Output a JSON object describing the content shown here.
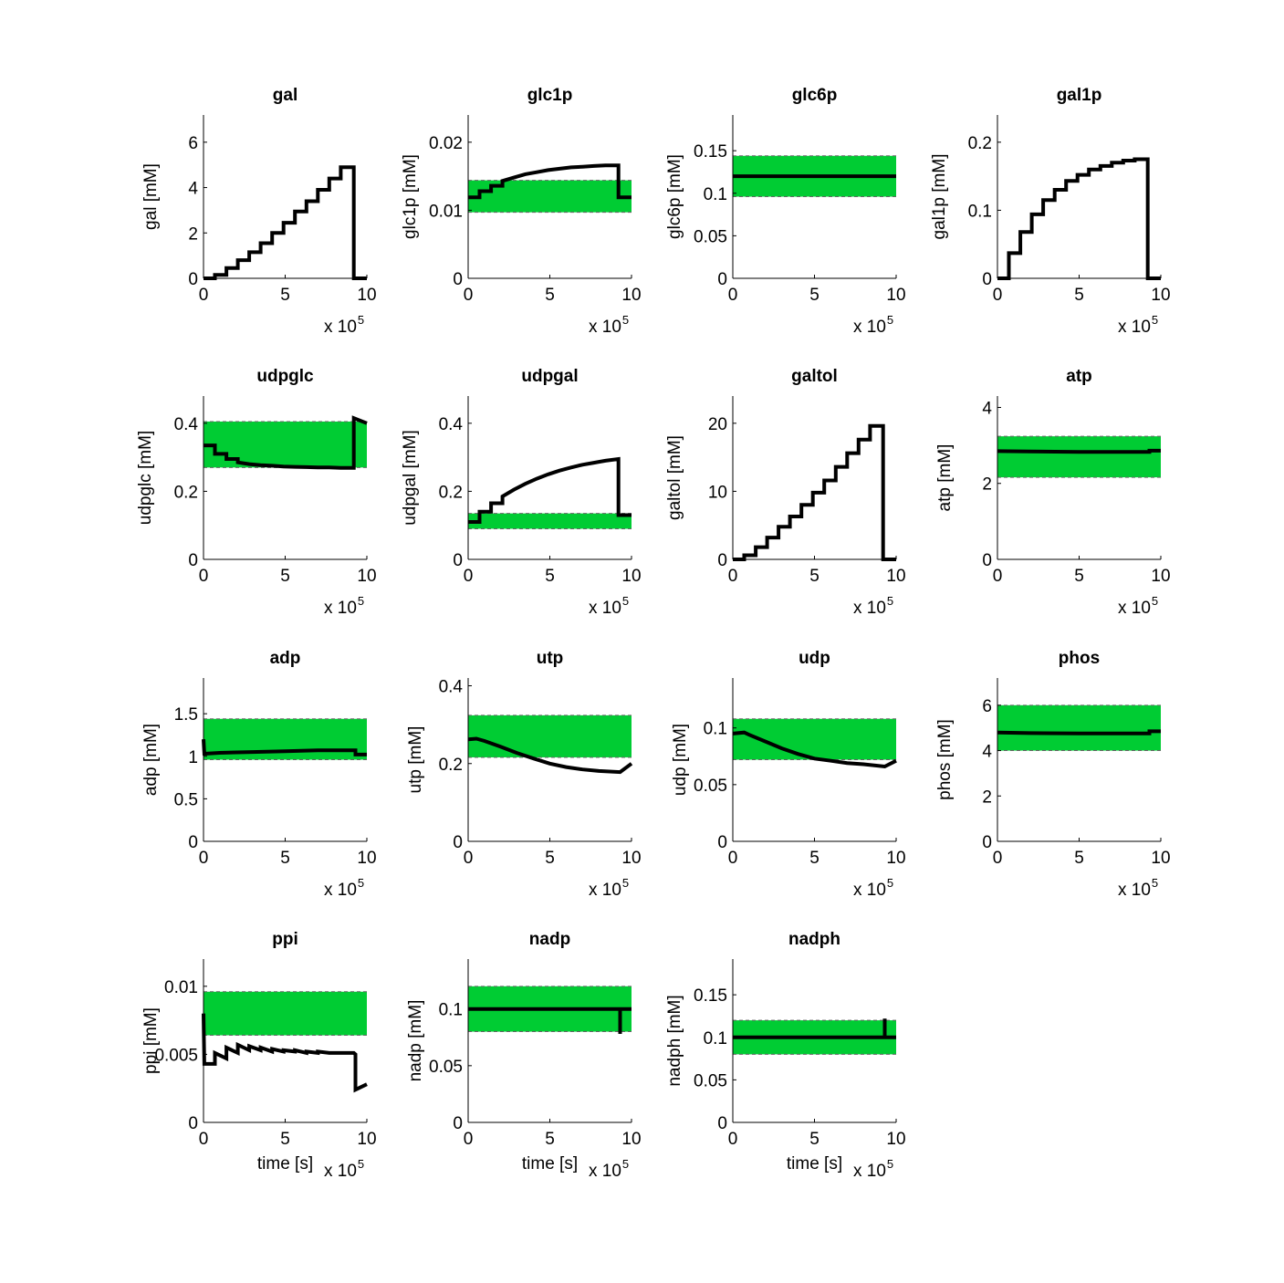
{
  "figure": {
    "background": "#ffffff",
    "band_color": "#00cc33",
    "line_color": "#000000"
  },
  "chart_data": [
    {
      "type": "line",
      "title": "gal",
      "ylabel": "gal [mM]",
      "xlabel": "",
      "xlim": [
        0,
        10
      ],
      "ylim": [
        0,
        7.2
      ],
      "xticks": [
        "0",
        "5",
        "10"
      ],
      "yticks": [
        {
          "v": 0,
          "l": "0"
        },
        {
          "v": 2,
          "l": "2"
        },
        {
          "v": 4,
          "l": "4"
        },
        {
          "v": 6,
          "l": "6"
        }
      ],
      "x_multiplier": "x 10",
      "x_exponent": "5",
      "band": null,
      "series": [
        {
          "x": [
            0,
            0.7,
            0.7,
            1.4,
            1.4,
            2.1,
            2.1,
            2.8,
            2.8,
            3.5,
            3.5,
            4.2,
            4.2,
            4.9,
            4.9,
            5.6,
            5.6,
            6.3,
            6.3,
            7.0,
            7.0,
            7.7,
            7.7,
            8.4,
            8.4,
            9.2,
            9.2,
            10
          ],
          "y": [
            0,
            0,
            0.15,
            0.15,
            0.45,
            0.45,
            0.8,
            0.8,
            1.15,
            1.15,
            1.55,
            1.55,
            2.0,
            2.0,
            2.45,
            2.45,
            2.95,
            2.95,
            3.4,
            3.4,
            3.9,
            3.9,
            4.4,
            4.4,
            4.9,
            4.9,
            0,
            0
          ]
        }
      ]
    },
    {
      "type": "line",
      "title": "glc1p",
      "ylabel": "glc1p [mM]",
      "xlabel": "",
      "xlim": [
        0,
        10
      ],
      "ylim": [
        0,
        0.024
      ],
      "xticks": [
        "0",
        "5",
        "10"
      ],
      "yticks": [
        {
          "v": 0,
          "l": "0"
        },
        {
          "v": 0.01,
          "l": "0.01"
        },
        {
          "v": 0.02,
          "l": "0.02"
        }
      ],
      "x_multiplier": "x 10",
      "x_exponent": "5",
      "band": [
        0.0097,
        0.0144
      ],
      "series": [
        {
          "x": [
            0,
            0.7,
            0.7,
            1.4,
            1.4,
            2.1,
            2.1,
            2.8,
            3.5,
            4.2,
            4.9,
            5.6,
            6.3,
            7.0,
            7.7,
            8.4,
            9.2,
            9.2,
            10
          ],
          "y": [
            0.0119,
            0.0119,
            0.0128,
            0.0128,
            0.0136,
            0.0136,
            0.0143,
            0.0148,
            0.0153,
            0.0156,
            0.0159,
            0.0161,
            0.0163,
            0.0164,
            0.0165,
            0.0166,
            0.0166,
            0.0119,
            0.0119
          ]
        }
      ]
    },
    {
      "type": "line",
      "title": "glc6p",
      "ylabel": "glc6p [mM]",
      "xlabel": "",
      "xlim": [
        0,
        10
      ],
      "ylim": [
        0,
        0.192
      ],
      "xticks": [
        "0",
        "5",
        "10"
      ],
      "yticks": [
        {
          "v": 0,
          "l": "0"
        },
        {
          "v": 0.05,
          "l": "0.05"
        },
        {
          "v": 0.1,
          "l": "0.1"
        },
        {
          "v": 0.15,
          "l": "0.15"
        }
      ],
      "x_multiplier": "x 10",
      "x_exponent": "5",
      "band": [
        0.096,
        0.144
      ],
      "series": [
        {
          "x": [
            0,
            10
          ],
          "y": [
            0.12,
            0.12
          ]
        }
      ]
    },
    {
      "type": "line",
      "title": "gal1p",
      "ylabel": "gal1p [mM]",
      "xlabel": "",
      "xlim": [
        0,
        10
      ],
      "ylim": [
        0,
        0.24
      ],
      "xticks": [
        "0",
        "5",
        "10"
      ],
      "yticks": [
        {
          "v": 0,
          "l": "0"
        },
        {
          "v": 0.1,
          "l": "0.1"
        },
        {
          "v": 0.2,
          "l": "0.2"
        }
      ],
      "x_multiplier": "x 10",
      "x_exponent": "5",
      "band": null,
      "series": [
        {
          "x": [
            0,
            0.7,
            0.7,
            1.4,
            1.4,
            2.1,
            2.1,
            2.8,
            2.8,
            3.5,
            3.5,
            4.2,
            4.2,
            4.9,
            4.9,
            5.6,
            5.6,
            6.3,
            6.3,
            7.0,
            7.0,
            7.7,
            7.7,
            8.4,
            8.4,
            9.2,
            9.2,
            10
          ],
          "y": [
            0,
            0,
            0.037,
            0.037,
            0.068,
            0.068,
            0.094,
            0.094,
            0.115,
            0.115,
            0.13,
            0.13,
            0.143,
            0.143,
            0.152,
            0.152,
            0.16,
            0.16,
            0.165,
            0.165,
            0.17,
            0.17,
            0.173,
            0.173,
            0.175,
            0.175,
            0,
            0
          ]
        }
      ]
    },
    {
      "type": "line",
      "title": "udpglc",
      "ylabel": "udpglc [mM]",
      "xlabel": "",
      "xlim": [
        0,
        10
      ],
      "ylim": [
        0,
        0.48
      ],
      "xticks": [
        "0",
        "5",
        "10"
      ],
      "yticks": [
        {
          "v": 0,
          "l": "0"
        },
        {
          "v": 0.2,
          "l": "0.2"
        },
        {
          "v": 0.4,
          "l": "0.4"
        }
      ],
      "x_multiplier": "x 10",
      "x_exponent": "5",
      "band": [
        0.27,
        0.405
      ],
      "series": [
        {
          "x": [
            0,
            0.7,
            0.7,
            1.4,
            1.4,
            2.1,
            2.1,
            2.8,
            3.5,
            4.2,
            4.9,
            5.6,
            6.3,
            7.0,
            7.7,
            8.4,
            9.2,
            9.2,
            10
          ],
          "y": [
            0.335,
            0.335,
            0.31,
            0.31,
            0.295,
            0.295,
            0.285,
            0.28,
            0.277,
            0.275,
            0.273,
            0.272,
            0.271,
            0.27,
            0.27,
            0.269,
            0.269,
            0.415,
            0.4
          ]
        }
      ]
    },
    {
      "type": "line",
      "title": "udpgal",
      "ylabel": "udpgal [mM]",
      "xlabel": "",
      "xlim": [
        0,
        10
      ],
      "ylim": [
        0,
        0.48
      ],
      "xticks": [
        "0",
        "5",
        "10"
      ],
      "yticks": [
        {
          "v": 0,
          "l": "0"
        },
        {
          "v": 0.2,
          "l": "0.2"
        },
        {
          "v": 0.4,
          "l": "0.4"
        }
      ],
      "x_multiplier": "x 10",
      "x_exponent": "5",
      "band": [
        0.09,
        0.135
      ],
      "series": [
        {
          "x": [
            0,
            0.7,
            0.7,
            1.4,
            1.4,
            2.1,
            2.1,
            2.8,
            3.5,
            4.2,
            4.9,
            5.6,
            6.3,
            7.0,
            7.7,
            8.4,
            9.2,
            9.2,
            10
          ],
          "y": [
            0.11,
            0.11,
            0.14,
            0.14,
            0.165,
            0.165,
            0.185,
            0.205,
            0.222,
            0.237,
            0.25,
            0.261,
            0.27,
            0.278,
            0.284,
            0.29,
            0.295,
            0.13,
            0.13
          ]
        }
      ]
    },
    {
      "type": "line",
      "title": "galtol",
      "ylabel": "galtol [mM]",
      "xlabel": "",
      "xlim": [
        0,
        10
      ],
      "ylim": [
        0,
        24
      ],
      "xticks": [
        "0",
        "5",
        "10"
      ],
      "yticks": [
        {
          "v": 0,
          "l": "0"
        },
        {
          "v": 10,
          "l": "10"
        },
        {
          "v": 20,
          "l": "20"
        }
      ],
      "x_multiplier": "x 10",
      "x_exponent": "5",
      "band": null,
      "series": [
        {
          "x": [
            0,
            0.7,
            0.7,
            1.4,
            1.4,
            2.1,
            2.1,
            2.8,
            2.8,
            3.5,
            3.5,
            4.2,
            4.2,
            4.9,
            4.9,
            5.6,
            5.6,
            6.3,
            6.3,
            7.0,
            7.0,
            7.7,
            7.7,
            8.4,
            8.4,
            9.2,
            9.2,
            10
          ],
          "y": [
            0,
            0,
            0.6,
            0.6,
            1.8,
            1.8,
            3.2,
            3.2,
            4.8,
            4.8,
            6.3,
            6.3,
            8.0,
            8.0,
            9.8,
            9.8,
            11.6,
            11.6,
            13.6,
            13.6,
            15.6,
            15.6,
            17.6,
            17.6,
            19.6,
            19.6,
            0,
            0
          ]
        }
      ]
    },
    {
      "type": "line",
      "title": "atp",
      "ylabel": "atp [mM]",
      "xlabel": "",
      "xlim": [
        0,
        10
      ],
      "ylim": [
        0,
        4.3
      ],
      "xticks": [
        "0",
        "5",
        "10"
      ],
      "yticks": [
        {
          "v": 0,
          "l": "0"
        },
        {
          "v": 2,
          "l": "2"
        },
        {
          "v": 4,
          "l": "4"
        }
      ],
      "x_multiplier": "x 10",
      "x_exponent": "5",
      "band": [
        2.16,
        3.24
      ],
      "series": [
        {
          "x": [
            0,
            2,
            5,
            7,
            9.3,
            9.3,
            10
          ],
          "y": [
            2.85,
            2.84,
            2.83,
            2.83,
            2.83,
            2.86,
            2.86
          ]
        }
      ]
    },
    {
      "type": "line",
      "title": "adp",
      "ylabel": "adp [mM]",
      "xlabel": "",
      "xlim": [
        0,
        10
      ],
      "ylim": [
        0,
        1.92
      ],
      "xticks": [
        "0",
        "5",
        "10"
      ],
      "yticks": [
        {
          "v": 0,
          "l": "0"
        },
        {
          "v": 0.5,
          "l": "0.5"
        },
        {
          "v": 1,
          "l": "1"
        },
        {
          "v": 1.5,
          "l": "1.5"
        }
      ],
      "x_multiplier": "x 10",
      "x_exponent": "5",
      "band": [
        0.96,
        1.44
      ],
      "series": [
        {
          "x": [
            0,
            0.05,
            1,
            3,
            5,
            7,
            9.3,
            9.3,
            10
          ],
          "y": [
            1.2,
            1.03,
            1.04,
            1.05,
            1.06,
            1.07,
            1.07,
            1.02,
            1.02
          ]
        }
      ]
    },
    {
      "type": "line",
      "title": "utp",
      "ylabel": "utp [mM]",
      "xlabel": "",
      "xlim": [
        0,
        10
      ],
      "ylim": [
        0,
        0.42
      ],
      "xticks": [
        "0",
        "5",
        "10"
      ],
      "yticks": [
        {
          "v": 0,
          "l": "0"
        },
        {
          "v": 0.2,
          "l": "0.2"
        },
        {
          "v": 0.4,
          "l": "0.4"
        }
      ],
      "x_multiplier": "x 10",
      "x_exponent": "5",
      "band": [
        0.216,
        0.324
      ],
      "series": [
        {
          "x": [
            0,
            0.5,
            1,
            2,
            3,
            4,
            5,
            6,
            7,
            8,
            9.3,
            10
          ],
          "y": [
            0.262,
            0.264,
            0.258,
            0.243,
            0.227,
            0.213,
            0.2,
            0.191,
            0.185,
            0.181,
            0.178,
            0.2
          ]
        }
      ]
    },
    {
      "type": "line",
      "title": "udp",
      "ylabel": "udp [mM]",
      "xlabel": "",
      "xlim": [
        0,
        10
      ],
      "ylim": [
        0,
        0.144
      ],
      "xticks": [
        "0",
        "5",
        "10"
      ],
      "yticks": [
        {
          "v": 0,
          "l": "0"
        },
        {
          "v": 0.05,
          "l": "0.05"
        },
        {
          "v": 0.1,
          "l": "0.1"
        }
      ],
      "x_multiplier": "x 10",
      "x_exponent": "5",
      "band": [
        0.072,
        0.108
      ],
      "series": [
        {
          "x": [
            0,
            0.7,
            1,
            2,
            3,
            4,
            5,
            6,
            7,
            8,
            9.3,
            10
          ],
          "y": [
            0.095,
            0.096,
            0.094,
            0.088,
            0.082,
            0.077,
            0.073,
            0.071,
            0.069,
            0.068,
            0.066,
            0.071
          ]
        }
      ]
    },
    {
      "type": "line",
      "title": "phos",
      "ylabel": "phos [mM]",
      "xlabel": "",
      "xlim": [
        0,
        10
      ],
      "ylim": [
        0,
        7.2
      ],
      "xticks": [
        "0",
        "5",
        "10"
      ],
      "yticks": [
        {
          "v": 0,
          "l": "0"
        },
        {
          "v": 2,
          "l": "2"
        },
        {
          "v": 4,
          "l": "4"
        },
        {
          "v": 6,
          "l": "6"
        }
      ],
      "x_multiplier": "x 10",
      "x_exponent": "5",
      "band": [
        4.0,
        6.0
      ],
      "series": [
        {
          "x": [
            0,
            2,
            5,
            8,
            9.3,
            9.3,
            10
          ],
          "y": [
            4.8,
            4.77,
            4.76,
            4.76,
            4.76,
            4.85,
            4.85
          ]
        }
      ]
    },
    {
      "type": "line",
      "title": "ppi",
      "ylabel": "ppi [mM]",
      "xlabel": "time [s]",
      "xlim": [
        0,
        10
      ],
      "ylim": [
        0,
        0.012
      ],
      "xticks": [
        "0",
        "5",
        "10"
      ],
      "yticks": [
        {
          "v": 0,
          "l": "0"
        },
        {
          "v": 0.005,
          "l": "0.005"
        },
        {
          "v": 0.01,
          "l": "0.01"
        }
      ],
      "x_multiplier": "x 10",
      "x_exponent": "5",
      "band": [
        0.0064,
        0.0096
      ],
      "series": [
        {
          "x": [
            0,
            0.05,
            0.7,
            0.7,
            1.4,
            1.4,
            2.1,
            2.1,
            2.8,
            2.8,
            3.5,
            3.5,
            4.2,
            4.2,
            4.9,
            4.9,
            5.6,
            5.6,
            6.3,
            6.3,
            7.0,
            7.0,
            7.7,
            7.7,
            8.4,
            8.4,
            9.2,
            9.3,
            9.3,
            10
          ],
          "y": [
            0.008,
            0.0043,
            0.0043,
            0.0051,
            0.0047,
            0.0055,
            0.0051,
            0.0057,
            0.0053,
            0.0056,
            0.0053,
            0.0055,
            0.0052,
            0.0054,
            0.0052,
            0.0053,
            0.0052,
            0.0053,
            0.0051,
            0.0052,
            0.0051,
            0.0052,
            0.0051,
            0.0051,
            0.0051,
            0.0051,
            0.0051,
            0.005,
            0.0024,
            0.0028
          ]
        }
      ]
    },
    {
      "type": "line",
      "title": "nadp",
      "ylabel": "nadp [mM]",
      "xlabel": "time [s]",
      "xlim": [
        0,
        10
      ],
      "ylim": [
        0,
        0.144
      ],
      "xticks": [
        "0",
        "5",
        "10"
      ],
      "yticks": [
        {
          "v": 0,
          "l": "0"
        },
        {
          "v": 0.05,
          "l": "0.05"
        },
        {
          "v": 0.1,
          "l": "0.1"
        }
      ],
      "x_multiplier": "x 10",
      "x_exponent": "5",
      "band": [
        0.08,
        0.12
      ],
      "series": [
        {
          "x": [
            0,
            9.3,
            9.3,
            9.3,
            10
          ],
          "y": [
            0.1,
            0.1,
            0.078,
            0.1,
            0.1
          ]
        }
      ]
    },
    {
      "type": "line",
      "title": "nadph",
      "ylabel": "nadph [mM]",
      "xlabel": "time [s]",
      "xlim": [
        0,
        10
      ],
      "ylim": [
        0,
        0.192
      ],
      "xticks": [
        "0",
        "5",
        "10"
      ],
      "yticks": [
        {
          "v": 0,
          "l": "0"
        },
        {
          "v": 0.05,
          "l": "0.05"
        },
        {
          "v": 0.1,
          "l": "0.1"
        },
        {
          "v": 0.15,
          "l": "0.15"
        }
      ],
      "x_multiplier": "x 10",
      "x_exponent": "5",
      "band": [
        0.08,
        0.12
      ],
      "series": [
        {
          "x": [
            0,
            9.3,
            9.3,
            9.3,
            10
          ],
          "y": [
            0.1,
            0.1,
            0.122,
            0.1,
            0.1
          ]
        }
      ]
    }
  ]
}
